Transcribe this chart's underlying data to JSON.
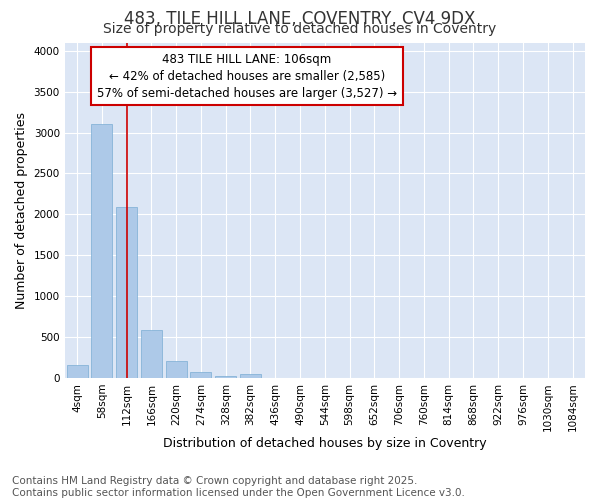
{
  "title_line1": "483, TILE HILL LANE, COVENTRY, CV4 9DX",
  "title_line2": "Size of property relative to detached houses in Coventry",
  "xlabel": "Distribution of detached houses by size in Coventry",
  "ylabel": "Number of detached properties",
  "bar_color": "#adc9e8",
  "bar_edge_color": "#7aadd4",
  "fig_background_color": "#ffffff",
  "plot_background_color": "#dce6f5",
  "grid_color": "#ffffff",
  "categories": [
    "4sqm",
    "58sqm",
    "112sqm",
    "166sqm",
    "220sqm",
    "274sqm",
    "328sqm",
    "382sqm",
    "436sqm",
    "490sqm",
    "544sqm",
    "598sqm",
    "652sqm",
    "706sqm",
    "760sqm",
    "814sqm",
    "868sqm",
    "922sqm",
    "976sqm",
    "1030sqm",
    "1084sqm"
  ],
  "values": [
    155,
    3100,
    2090,
    590,
    205,
    75,
    28,
    50,
    2,
    0,
    0,
    0,
    0,
    0,
    0,
    0,
    0,
    0,
    0,
    0,
    0
  ],
  "ylim": [
    0,
    4100
  ],
  "yticks": [
    0,
    500,
    1000,
    1500,
    2000,
    2500,
    3000,
    3500,
    4000
  ],
  "property_line_x": 2.0,
  "property_label": "483 TILE HILL LANE: 106sqm",
  "annotation_line1": "← 42% of detached houses are smaller (2,585)",
  "annotation_line2": "57% of semi-detached houses are larger (3,527) →",
  "annotation_box_color": "#ffffff",
  "annotation_box_edge": "#cc0000",
  "vline_color": "#cc0000",
  "footer_line1": "Contains HM Land Registry data © Crown copyright and database right 2025.",
  "footer_line2": "Contains public sector information licensed under the Open Government Licence v3.0.",
  "title_fontsize": 12,
  "subtitle_fontsize": 10,
  "axis_label_fontsize": 9,
  "tick_fontsize": 7.5,
  "annotation_fontsize": 8.5,
  "footer_fontsize": 7.5
}
